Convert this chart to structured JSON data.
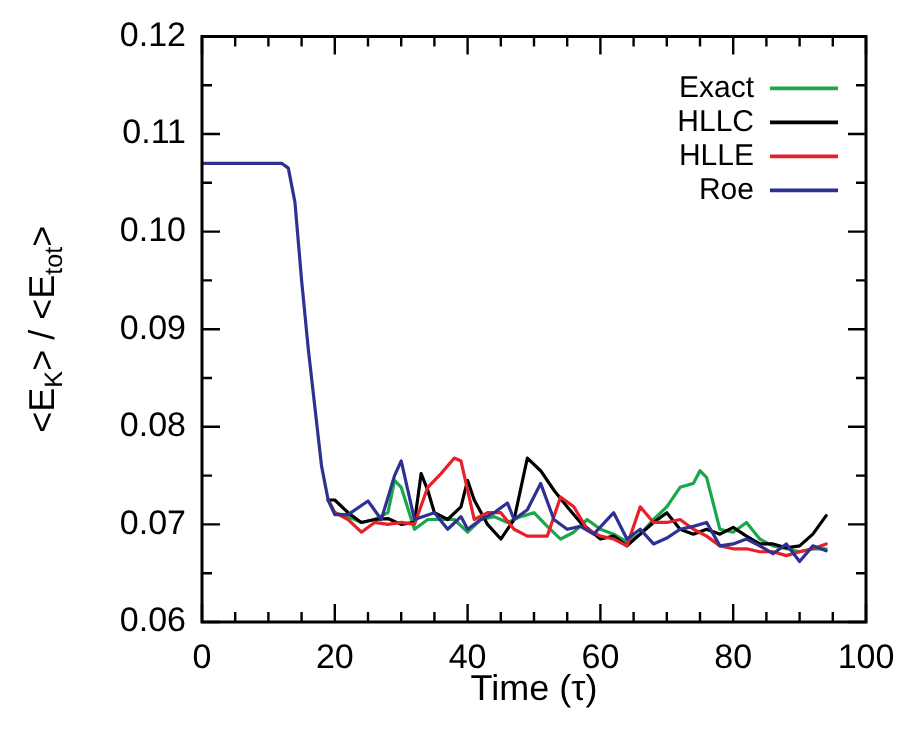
{
  "chart_data": {
    "type": "line",
    "xlabel": "Time (τ)",
    "ylabel": "<E$_{K}$> / <E$_{tot}$>",
    "xlim": [
      0,
      100
    ],
    "ylim": [
      0.06,
      0.12
    ],
    "xticks": [
      0,
      {
        "value": 5,
        "label": null
      },
      {
        "value": 10,
        "label": null
      },
      {
        "value": 15,
        "label": null
      },
      20,
      {
        "value": 25,
        "label": null
      },
      {
        "value": 30,
        "label": null
      },
      {
        "value": 35,
        "label": null
      },
      40,
      {
        "value": 45,
        "label": null
      },
      {
        "value": 50,
        "label": null
      },
      {
        "value": 55,
        "label": null
      },
      60,
      {
        "value": 65,
        "label": null
      },
      {
        "value": 70,
        "label": null
      },
      {
        "value": 75,
        "label": null
      },
      80,
      {
        "value": 85,
        "label": null
      },
      {
        "value": 90,
        "label": null
      },
      {
        "value": 95,
        "label": null
      },
      100
    ],
    "yticks": [
      0.06,
      {
        "value": 0.065,
        "label": null
      },
      {
        "value": 0.07,
        "label": "0.07"
      },
      {
        "value": 0.075,
        "label": null
      },
      {
        "value": 0.08,
        "label": "0.08"
      },
      {
        "value": 0.085,
        "label": null
      },
      {
        "value": 0.09,
        "label": "0.09"
      },
      {
        "value": 0.095,
        "label": null
      },
      {
        "value": 0.1,
        "label": "0.10"
      },
      {
        "value": 0.105,
        "label": null
      },
      {
        "value": 0.11,
        "label": "0.11"
      },
      {
        "value": 0.115,
        "label": null
      },
      {
        "value": 0.12,
        "label": "0.12"
      }
    ],
    "grid": false,
    "legend": "top right",
    "marker": "none",
    "line_style": "solid",
    "series": [
      {
        "name": "Exact",
        "color": "#1aa64a",
        "x": [
          19,
          20,
          22,
          24,
          26,
          28,
          29,
          30,
          32,
          34,
          36,
          38,
          40,
          42,
          44,
          46,
          48,
          50,
          52,
          54,
          56,
          58,
          60,
          62,
          64,
          66,
          68,
          70,
          72,
          74,
          75,
          76,
          78,
          80,
          82,
          84,
          86,
          88,
          90,
          92,
          94
        ],
        "values": [
          0.0725,
          0.0712,
          0.0708,
          0.0702,
          0.0705,
          0.0712,
          0.0745,
          0.0738,
          0.0695,
          0.0705,
          0.0705,
          0.0705,
          0.0692,
          0.0705,
          0.0708,
          0.0702,
          0.0708,
          0.0712,
          0.0698,
          0.0685,
          0.0692,
          0.0705,
          0.0695,
          0.069,
          0.0682,
          0.069,
          0.0705,
          0.0718,
          0.0738,
          0.0742,
          0.0755,
          0.0748,
          0.0695,
          0.0692,
          0.0702,
          0.0685,
          0.0678,
          0.0675,
          0.0672,
          0.0675,
          0.0675
        ]
      },
      {
        "name": "HLLC",
        "color": "#000000",
        "x": [
          19,
          20,
          22,
          24,
          26,
          28,
          30,
          32,
          33,
          34,
          35,
          37,
          39,
          40,
          41,
          43,
          45,
          47,
          49,
          51,
          53,
          55,
          57,
          60,
          62,
          64,
          66,
          68,
          70,
          72,
          74,
          76,
          78,
          80,
          82,
          84,
          86,
          88,
          90,
          92,
          94
        ],
        "values": [
          0.0725,
          0.0725,
          0.0712,
          0.0702,
          0.0705,
          0.0706,
          0.07,
          0.0702,
          0.0752,
          0.0735,
          0.0712,
          0.0705,
          0.0718,
          0.0745,
          0.0725,
          0.07,
          0.0685,
          0.0705,
          0.0768,
          0.0755,
          0.0735,
          0.0718,
          0.0702,
          0.0685,
          0.0688,
          0.0678,
          0.069,
          0.0702,
          0.0712,
          0.0695,
          0.069,
          0.0695,
          0.069,
          0.0697,
          0.0688,
          0.068,
          0.068,
          0.0676,
          0.0678,
          0.069,
          0.0709
        ]
      },
      {
        "name": "HLLE",
        "color": "#e8202a",
        "x": [
          19,
          20,
          22,
          24,
          26,
          28,
          30,
          32,
          34,
          36,
          38,
          39,
          40,
          41,
          43,
          45,
          47,
          49,
          52,
          54,
          56,
          58,
          60,
          62,
          64,
          66,
          68,
          70,
          72,
          74,
          76,
          78,
          80,
          82,
          84,
          86,
          88,
          90,
          92,
          94
        ],
        "values": [
          0.0725,
          0.0712,
          0.0705,
          0.0692,
          0.0702,
          0.07,
          0.0702,
          0.07,
          0.0738,
          0.0752,
          0.0768,
          0.0765,
          0.0735,
          0.0705,
          0.0712,
          0.0712,
          0.0695,
          0.0688,
          0.0688,
          0.0728,
          0.0718,
          0.0695,
          0.0688,
          0.0685,
          0.0678,
          0.0718,
          0.0702,
          0.0702,
          0.0705,
          0.0695,
          0.0688,
          0.0678,
          0.0675,
          0.0675,
          0.0672,
          0.0672,
          0.0668,
          0.0672,
          0.0675,
          0.068
        ]
      },
      {
        "name": "Roe",
        "color": "#2e3192",
        "x": [
          0,
          12,
          13,
          14,
          15,
          16,
          17,
          18,
          19,
          20,
          22,
          25,
          27,
          29,
          30,
          31,
          32,
          35,
          37,
          39,
          40,
          42,
          44,
          46,
          47,
          49,
          51,
          53,
          55,
          57,
          59,
          62,
          64,
          66,
          68,
          70,
          72,
          74,
          76,
          78,
          80,
          82,
          84,
          86,
          88,
          90,
          92,
          94
        ],
        "values": [
          0.107,
          0.107,
          0.1065,
          0.103,
          0.095,
          0.088,
          0.082,
          0.076,
          0.0725,
          0.071,
          0.071,
          0.0724,
          0.0705,
          0.075,
          0.0765,
          0.0735,
          0.0705,
          0.0712,
          0.0695,
          0.0708,
          0.0695,
          0.0705,
          0.0712,
          0.0722,
          0.0705,
          0.0715,
          0.0742,
          0.0705,
          0.0695,
          0.0698,
          0.069,
          0.0712,
          0.0685,
          0.0695,
          0.068,
          0.0686,
          0.0695,
          0.0698,
          0.0702,
          0.0678,
          0.068,
          0.0685,
          0.0678,
          0.067,
          0.068,
          0.0662,
          0.0678,
          0.0673
        ]
      }
    ]
  }
}
